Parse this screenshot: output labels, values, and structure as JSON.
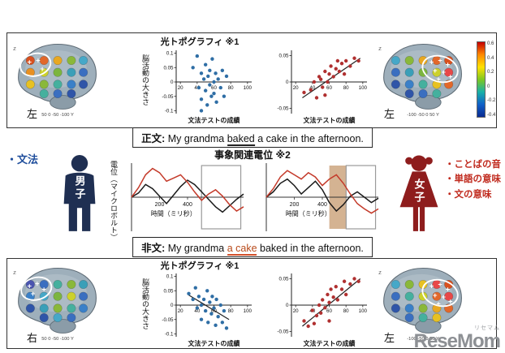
{
  "topo_title": "光トポグラフィ ※1",
  "sentences": {
    "correct": {
      "label": "正文:",
      "pre": " My grandma ",
      "underlined": "baked",
      "post": " a cake in the afternoon."
    },
    "incorrect": {
      "label": "非文:",
      "pre": " My grandma ",
      "underlined": "a cake",
      "post": " baked in the afternoon."
    }
  },
  "left_legend": {
    "items": [
      "・文法"
    ]
  },
  "right_legend": {
    "items": [
      "・ことばの音",
      "・単語の意味",
      "・文の意味"
    ]
  },
  "boy_label": "男子",
  "girl_label": "女子",
  "erp": {
    "title": "事象関連電位 ※2",
    "ylabel": "電位（マイクロボルト）"
  },
  "colorbar": {
    "ticks": [
      "0.6",
      "0.4",
      "0.2",
      "0",
      "-0.2",
      "-0.4"
    ]
  },
  "watermark": {
    "ruby": "リセマム",
    "name": "ReseMom"
  },
  "brains": [
    {
      "label": "左",
      "zlabel": "Z",
      "xaxis": "50    0    -50    -100   Y",
      "dots": [
        [
          24,
          28,
          "#d9501e"
        ],
        [
          40,
          28,
          "#e2682a"
        ],
        [
          56,
          28,
          "#e8a822"
        ],
        [
          72,
          28,
          "#8ab83a"
        ],
        [
          86,
          28,
          "#46a8c8"
        ],
        [
          24,
          42,
          "#e89022"
        ],
        [
          40,
          42,
          "#ccd12c"
        ],
        [
          56,
          42,
          "#7cb53f"
        ],
        [
          72,
          42,
          "#3a9fb8"
        ],
        [
          86,
          42,
          "#3a6fc0"
        ],
        [
          24,
          56,
          "#e7c122"
        ],
        [
          40,
          56,
          "#8ab83a"
        ],
        [
          56,
          56,
          "#45b09e"
        ],
        [
          72,
          56,
          "#3a80c8"
        ],
        [
          86,
          56,
          "#2f55a8"
        ],
        [
          40,
          67,
          "#45b09e"
        ],
        [
          56,
          67,
          "#3a6fc0"
        ],
        [
          72,
          67,
          "#2f55a8"
        ]
      ],
      "ellipse": [
        30,
        33,
        18,
        13,
        -15
      ],
      "plus": [
        [
          23,
          30
        ],
        [
          33,
          28
        ],
        [
          38,
          38
        ]
      ]
    },
    {
      "label": "左",
      "zlabel": "Z",
      "xaxis": "-100    -50    0    50   Y",
      "dots": [
        [
          24,
          28,
          "#46a8c8"
        ],
        [
          40,
          28,
          "#8ab83a"
        ],
        [
          56,
          28,
          "#e8a822"
        ],
        [
          72,
          28,
          "#e2682a"
        ],
        [
          86,
          28,
          "#d9501e"
        ],
        [
          24,
          42,
          "#3a6fc0"
        ],
        [
          40,
          42,
          "#3a9fb8"
        ],
        [
          56,
          42,
          "#7cb53f"
        ],
        [
          72,
          42,
          "#ccd12c"
        ],
        [
          86,
          42,
          "#e84848"
        ],
        [
          24,
          56,
          "#2f55a8"
        ],
        [
          40,
          56,
          "#3a80c8"
        ],
        [
          56,
          56,
          "#45b09e"
        ],
        [
          72,
          56,
          "#e7c122"
        ],
        [
          86,
          56,
          "#e2682a"
        ],
        [
          40,
          67,
          "#2f55a8"
        ],
        [
          56,
          67,
          "#3a6fc0"
        ],
        [
          72,
          67,
          "#45b09e"
        ]
      ],
      "ellipse": [
        76,
        38,
        21,
        15,
        15
      ],
      "plus": [
        [
          66,
          30
        ],
        [
          76,
          28
        ],
        [
          85,
          33
        ],
        [
          70,
          40
        ],
        [
          80,
          42
        ],
        [
          88,
          47
        ],
        [
          74,
          50
        ]
      ]
    },
    {
      "label": "右",
      "zlabel": "Z",
      "xaxis": "50    0    -50    -100   Y",
      "dots": [
        [
          24,
          28,
          "#4a55b0"
        ],
        [
          40,
          28,
          "#3a6fc0"
        ],
        [
          56,
          28,
          "#45b09e"
        ],
        [
          72,
          28,
          "#8ab83a"
        ],
        [
          86,
          28,
          "#3a9fb8"
        ],
        [
          24,
          42,
          "#3a80c8"
        ],
        [
          40,
          42,
          "#46a8c8"
        ],
        [
          56,
          42,
          "#7cb53f"
        ],
        [
          72,
          42,
          "#ccd12c"
        ],
        [
          86,
          42,
          "#3a6fc0"
        ],
        [
          24,
          56,
          "#2f55a8"
        ],
        [
          40,
          56,
          "#3a9fb8"
        ],
        [
          56,
          56,
          "#8ab83a"
        ],
        [
          72,
          56,
          "#45b09e"
        ],
        [
          86,
          56,
          "#3a80c8"
        ],
        [
          40,
          67,
          "#2f55a8"
        ],
        [
          56,
          67,
          "#46a8c8"
        ],
        [
          72,
          67,
          "#3a6fc0"
        ]
      ],
      "ellipse": [
        31,
        33,
        18,
        13,
        -15
      ],
      "plus": [
        [
          23,
          30
        ],
        [
          32,
          27
        ],
        [
          40,
          34
        ],
        [
          27,
          39
        ]
      ]
    },
    {
      "label": "左",
      "zlabel": "Z",
      "xaxis": "-100    -50    0    50   Y",
      "dots": [
        [
          24,
          28,
          "#46a8c8"
        ],
        [
          40,
          28,
          "#8ab83a"
        ],
        [
          56,
          28,
          "#e7c122"
        ],
        [
          72,
          28,
          "#e84848"
        ],
        [
          86,
          28,
          "#d9501e"
        ],
        [
          24,
          42,
          "#3a6fc0"
        ],
        [
          40,
          42,
          "#45b09e"
        ],
        [
          56,
          42,
          "#ccd12c"
        ],
        [
          72,
          42,
          "#e2682a"
        ],
        [
          86,
          42,
          "#e84848"
        ],
        [
          24,
          56,
          "#2f55a8"
        ],
        [
          40,
          56,
          "#3a80c8"
        ],
        [
          56,
          56,
          "#8ab83a"
        ],
        [
          72,
          56,
          "#e8a822"
        ],
        [
          86,
          56,
          "#e2682a"
        ],
        [
          40,
          67,
          "#3a6fc0"
        ],
        [
          56,
          67,
          "#45b09e"
        ],
        [
          72,
          67,
          "#e7c122"
        ]
      ],
      "ellipse": [
        76,
        38,
        21,
        15,
        15
      ],
      "plus": [
        [
          66,
          30
        ],
        [
          76,
          28
        ],
        [
          85,
          34
        ],
        [
          70,
          41
        ],
        [
          80,
          43
        ],
        [
          88,
          48
        ],
        [
          74,
          51
        ]
      ]
    }
  ],
  "chart_data": [
    {
      "type": "scatter",
      "title": "光トポグラフィ ※1",
      "ylabel": "脳活動の大きさ",
      "xlabel": "文法テストの成績",
      "color": "#2f6ea5",
      "xlim": [
        15,
        105
      ],
      "ylim": [
        -0.11,
        0.11
      ],
      "xticks": [
        20,
        40,
        60,
        80,
        100
      ],
      "yticks": [
        0.1,
        0.05,
        0,
        -0.05,
        -0.1
      ],
      "trend": null,
      "points": [
        [
          35,
          0.05
        ],
        [
          40,
          0.09
        ],
        [
          42,
          -0.02
        ],
        [
          45,
          0.03
        ],
        [
          45,
          -0.06
        ],
        [
          48,
          0.01
        ],
        [
          50,
          0.06
        ],
        [
          50,
          -0.03
        ],
        [
          52,
          -0.08
        ],
        [
          53,
          0.02
        ],
        [
          55,
          0.04
        ],
        [
          55,
          -0.01
        ],
        [
          57,
          -0.05
        ],
        [
          58,
          0.08
        ],
        [
          60,
          0
        ],
        [
          60,
          -0.04
        ],
        [
          62,
          0.03
        ],
        [
          63,
          -0.07
        ],
        [
          65,
          0.01
        ],
        [
          68,
          -0.02
        ],
        [
          70,
          0.04
        ],
        [
          72,
          -0.05
        ],
        [
          75,
          0.02
        ],
        [
          45,
          -0.1
        ]
      ]
    },
    {
      "type": "scatter",
      "title": "",
      "ylabel": "",
      "xlabel": "文法テストの成績",
      "color": "#b03030",
      "xlim": [
        15,
        105
      ],
      "ylim": [
        -0.06,
        0.06
      ],
      "xticks": [
        20,
        40,
        60,
        80,
        100
      ],
      "yticks": [
        0.05,
        0,
        -0.05
      ],
      "trend": [
        [
          28,
          -0.03
        ],
        [
          97,
          0.045
        ]
      ],
      "points": [
        [
          30,
          -0.02
        ],
        [
          38,
          -0.015
        ],
        [
          42,
          0
        ],
        [
          45,
          -0.03
        ],
        [
          48,
          0.01
        ],
        [
          50,
          0.005
        ],
        [
          52,
          -0.01
        ],
        [
          55,
          0.02
        ],
        [
          55,
          -0.025
        ],
        [
          58,
          0
        ],
        [
          60,
          0.015
        ],
        [
          62,
          0.03
        ],
        [
          65,
          0.01
        ],
        [
          68,
          0.025
        ],
        [
          70,
          0.04
        ],
        [
          72,
          0.02
        ],
        [
          75,
          0.035
        ],
        [
          78,
          0.015
        ],
        [
          80,
          0.04
        ],
        [
          85,
          0.03
        ],
        [
          90,
          0.045
        ],
        [
          95,
          0.04
        ]
      ]
    },
    {
      "type": "line",
      "xlabel": "時間（ミリ秒）",
      "xlim": [
        0,
        800
      ],
      "ylim": [
        -3.2,
        3.2
      ],
      "xticks": [
        200,
        400
      ],
      "x": [
        0,
        50,
        100,
        150,
        200,
        250,
        300,
        350,
        400,
        450,
        500,
        550,
        600,
        650,
        700,
        750,
        800
      ],
      "regions": [
        {
          "x": [
            500,
            780
          ],
          "stroke": "#9a9a9a"
        }
      ],
      "series": [
        {
          "name": "black-line",
          "color": "#1a1a1a",
          "values": [
            0,
            0.4,
            1.2,
            0.8,
            0.1,
            -0.6,
            0.2,
            1.0,
            1.6,
            1.2,
            0.5,
            -0.2,
            -0.9,
            -1.4,
            -0.8,
            -0.2,
            0.3
          ]
        },
        {
          "name": "red-line",
          "color": "#c43a2a",
          "values": [
            0,
            0.9,
            2.1,
            2.7,
            2.3,
            1.5,
            1.8,
            2.1,
            1.4,
            0.5,
            -0.3,
            0.3,
            0.7,
            0.1,
            -0.7,
            -1.3,
            -0.9
          ]
        }
      ]
    },
    {
      "type": "line",
      "xlabel": "時間（ミリ秒）",
      "xlim": [
        0,
        800
      ],
      "ylim": [
        -3.2,
        3.2
      ],
      "xticks": [
        200,
        400
      ],
      "x": [
        0,
        50,
        100,
        150,
        200,
        250,
        300,
        350,
        400,
        450,
        500,
        550,
        600,
        650,
        700,
        750,
        800
      ],
      "regions": [
        {
          "x": [
            450,
            570
          ],
          "fill": "#c59a6d"
        },
        {
          "x": [
            570,
            780
          ],
          "stroke": "#9a9a9a"
        }
      ],
      "series": [
        {
          "name": "black-line",
          "color": "#1a1a1a",
          "values": [
            0,
            0.5,
            1.3,
            1.7,
            1.1,
            0.3,
            0.9,
            1.5,
            0.7,
            -0.5,
            -1.3,
            -0.7,
            0.1,
            0.5,
            0,
            -0.5,
            -0.1
          ]
        },
        {
          "name": "red-line",
          "color": "#c43a2a",
          "values": [
            0,
            0.8,
            1.9,
            2.5,
            2.1,
            1.7,
            2.3,
            1.9,
            1.1,
            1.7,
            2.1,
            1.3,
            0.3,
            -0.6,
            -1.1,
            -1.5,
            -1.1
          ]
        }
      ]
    },
    {
      "type": "scatter",
      "title": "光トポグラフィ ※1",
      "ylabel": "脳活動の大きさ",
      "xlabel": "文法テストの成績",
      "color": "#2f6ea5",
      "xlim": [
        15,
        105
      ],
      "ylim": [
        -0.11,
        0.11
      ],
      "xticks": [
        20,
        40,
        60,
        80,
        100
      ],
      "yticks": [
        0.1,
        0.05,
        0,
        -0.05,
        -0.1
      ],
      "trend": [
        [
          30,
          0.035
        ],
        [
          78,
          -0.05
        ]
      ],
      "points": [
        [
          30,
          0.04
        ],
        [
          35,
          0.02
        ],
        [
          38,
          0.06
        ],
        [
          40,
          -0.01
        ],
        [
          42,
          0.03
        ],
        [
          45,
          0
        ],
        [
          45,
          -0.05
        ],
        [
          48,
          0.02
        ],
        [
          50,
          -0.02
        ],
        [
          52,
          0.05
        ],
        [
          53,
          -0.06
        ],
        [
          55,
          0.01
        ],
        [
          57,
          -0.03
        ],
        [
          58,
          0.03
        ],
        [
          60,
          -0.01
        ],
        [
          62,
          -0.07
        ],
        [
          63,
          0.02
        ],
        [
          65,
          -0.04
        ],
        [
          68,
          0
        ],
        [
          70,
          -0.06
        ],
        [
          72,
          -0.02
        ],
        [
          75,
          -0.08
        ]
      ]
    },
    {
      "type": "scatter",
      "title": "",
      "ylabel": "",
      "xlabel": "文法テストの成績",
      "color": "#b03030",
      "xlim": [
        15,
        105
      ],
      "ylim": [
        -0.06,
        0.06
      ],
      "xticks": [
        20,
        40,
        60,
        80,
        100
      ],
      "yticks": [
        0.05,
        0,
        -0.05
      ],
      "trend": [
        [
          28,
          -0.04
        ],
        [
          97,
          0.05
        ]
      ],
      "points": [
        [
          30,
          -0.03
        ],
        [
          35,
          -0.04
        ],
        [
          40,
          -0.01
        ],
        [
          42,
          -0.035
        ],
        [
          45,
          -0.02
        ],
        [
          48,
          0
        ],
        [
          50,
          -0.015
        ],
        [
          52,
          0.01
        ],
        [
          55,
          -0.005
        ],
        [
          58,
          0.02
        ],
        [
          60,
          0.005
        ],
        [
          60,
          -0.03
        ],
        [
          62,
          0.03
        ],
        [
          65,
          0.015
        ],
        [
          68,
          0.035
        ],
        [
          70,
          0.01
        ],
        [
          75,
          0.03
        ],
        [
          78,
          0.045
        ],
        [
          80,
          0.02
        ],
        [
          85,
          0.04
        ],
        [
          90,
          0.05
        ],
        [
          95,
          0.045
        ]
      ]
    }
  ]
}
